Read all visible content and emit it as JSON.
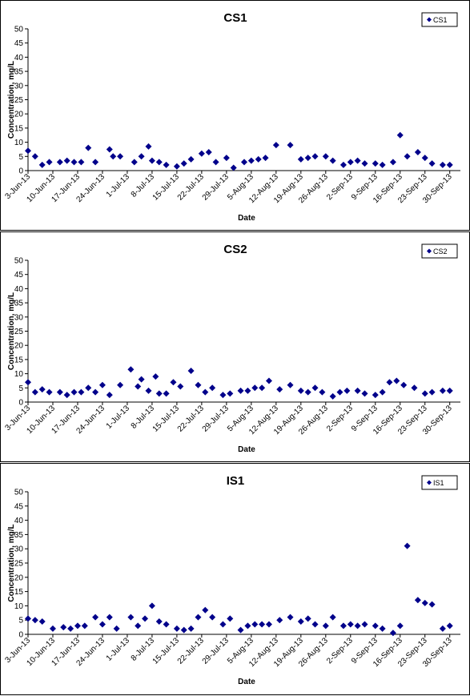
{
  "chart_data": [
    {
      "type": "scatter",
      "title": "CS1",
      "xlabel": "Date",
      "ylabel": "Concentration, mg/L",
      "ylim": [
        0,
        50
      ],
      "yticks": [
        0,
        5,
        10,
        15,
        20,
        25,
        30,
        35,
        40,
        45,
        50
      ],
      "xlim": [
        "2013-06-03",
        "2013-10-03"
      ],
      "xtick_labels": [
        "3-Jun-13",
        "10-Jun-13",
        "17-Jun-13",
        "24-Jun-13",
        "1-Jul-13",
        "8-Jul-13",
        "15-Jul-13",
        "22-Jul-13",
        "29-Jul-13",
        "5-Aug-13",
        "12-Aug-13",
        "19-Aug-13",
        "26-Aug-13",
        "2-Sep-13",
        "9-Sep-13",
        "16-Sep-13",
        "23-Sep-13",
        "30-Sep-13"
      ],
      "xtick_dates": [
        "2013-06-03",
        "2013-06-10",
        "2013-06-17",
        "2013-06-24",
        "2013-07-01",
        "2013-07-08",
        "2013-07-15",
        "2013-07-22",
        "2013-07-29",
        "2013-08-05",
        "2013-08-12",
        "2013-08-19",
        "2013-08-26",
        "2013-09-02",
        "2013-09-09",
        "2013-09-16",
        "2013-09-23",
        "2013-09-30"
      ],
      "legend": "top-right",
      "series": [
        {
          "name": "CS1",
          "color": "#00008B",
          "x": [
            "2013-06-03",
            "2013-06-05",
            "2013-06-07",
            "2013-06-09",
            "2013-06-12",
            "2013-06-14",
            "2013-06-16",
            "2013-06-18",
            "2013-06-20",
            "2013-06-22",
            "2013-06-26",
            "2013-06-27",
            "2013-06-29",
            "2013-07-03",
            "2013-07-05",
            "2013-07-07",
            "2013-07-08",
            "2013-07-10",
            "2013-07-12",
            "2013-07-15",
            "2013-07-17",
            "2013-07-19",
            "2013-07-22",
            "2013-07-24",
            "2013-07-26",
            "2013-07-29",
            "2013-07-31",
            "2013-08-03",
            "2013-08-05",
            "2013-08-07",
            "2013-08-09",
            "2013-08-12",
            "2013-08-16",
            "2013-08-19",
            "2013-08-21",
            "2013-08-23",
            "2013-08-26",
            "2013-08-28",
            "2013-08-31",
            "2013-09-02",
            "2013-09-04",
            "2013-09-06",
            "2013-09-09",
            "2013-09-11",
            "2013-09-14",
            "2013-09-16",
            "2013-09-18",
            "2013-09-21",
            "2013-09-23",
            "2013-09-25",
            "2013-09-28",
            "2013-09-30"
          ],
          "y": [
            7,
            5,
            2,
            3,
            3,
            3.5,
            3,
            3,
            8,
            3,
            7.5,
            5,
            5,
            3,
            5,
            8.5,
            3.5,
            3,
            2,
            1.5,
            2.5,
            4,
            6,
            6.5,
            3,
            4.5,
            1,
            3,
            3.5,
            4,
            4.5,
            9,
            9,
            4,
            4.5,
            5,
            5,
            3.5,
            2,
            3,
            3.5,
            2.5,
            2.5,
            2,
            3,
            12.5,
            5,
            6.5,
            4.5,
            2.5,
            2,
            2
          ]
        }
      ]
    },
    {
      "type": "scatter",
      "title": "CS2",
      "xlabel": "Date",
      "ylabel": "Concentration, mg/L",
      "ylim": [
        0,
        50
      ],
      "yticks": [
        0,
        5,
        10,
        15,
        20,
        25,
        30,
        35,
        40,
        45,
        50
      ],
      "xlim": [
        "2013-06-03",
        "2013-10-03"
      ],
      "xtick_labels": [
        "3-Jun-13",
        "10-Jun-13",
        "17-Jun-13",
        "24-Jun-13",
        "1-Jul-13",
        "8-Jul-13",
        "15-Jul-13",
        "22-Jul-13",
        "29-Jul-13",
        "5-Aug-13",
        "12-Aug-13",
        "19-Aug-13",
        "26-Aug-13",
        "2-Sep-13",
        "9-Sep-13",
        "16-Sep-13",
        "23-Sep-13",
        "30-Sep-13"
      ],
      "xtick_dates": [
        "2013-06-03",
        "2013-06-10",
        "2013-06-17",
        "2013-06-24",
        "2013-07-01",
        "2013-07-08",
        "2013-07-15",
        "2013-07-22",
        "2013-07-29",
        "2013-08-05",
        "2013-08-12",
        "2013-08-19",
        "2013-08-26",
        "2013-09-02",
        "2013-09-09",
        "2013-09-16",
        "2013-09-23",
        "2013-09-30"
      ],
      "legend": "top-right",
      "series": [
        {
          "name": "CS2",
          "color": "#00008B",
          "x": [
            "2013-06-03",
            "2013-06-05",
            "2013-06-07",
            "2013-06-09",
            "2013-06-12",
            "2013-06-14",
            "2013-06-16",
            "2013-06-18",
            "2013-06-20",
            "2013-06-22",
            "2013-06-24",
            "2013-06-26",
            "2013-06-29",
            "2013-07-02",
            "2013-07-04",
            "2013-07-05",
            "2013-07-07",
            "2013-07-09",
            "2013-07-10",
            "2013-07-12",
            "2013-07-14",
            "2013-07-16",
            "2013-07-19",
            "2013-07-21",
            "2013-07-23",
            "2013-07-25",
            "2013-07-28",
            "2013-07-30",
            "2013-08-02",
            "2013-08-04",
            "2013-08-06",
            "2013-08-08",
            "2013-08-10",
            "2013-08-13",
            "2013-08-16",
            "2013-08-19",
            "2013-08-21",
            "2013-08-23",
            "2013-08-25",
            "2013-08-28",
            "2013-08-30",
            "2013-09-01",
            "2013-09-04",
            "2013-09-06",
            "2013-09-09",
            "2013-09-11",
            "2013-09-13",
            "2013-09-15",
            "2013-09-17",
            "2013-09-20",
            "2013-09-23",
            "2013-09-25",
            "2013-09-28",
            "2013-09-30"
          ],
          "y": [
            7,
            3.5,
            4.5,
            3.5,
            3.5,
            2.5,
            3.5,
            3.5,
            5,
            3.5,
            6,
            2.5,
            6,
            11.5,
            5.5,
            8,
            4,
            9,
            3,
            3,
            7,
            5.5,
            11,
            6,
            3.5,
            5,
            2.5,
            3,
            4,
            4,
            5,
            5,
            7.5,
            4.5,
            6,
            4,
            3.5,
            5,
            3.5,
            2,
            3.5,
            4,
            4,
            3,
            2.5,
            3.5,
            7,
            7.5,
            6,
            5,
            3,
            3.5,
            4,
            4
          ]
        }
      ]
    },
    {
      "type": "scatter",
      "title": "IS1",
      "xlabel": "Date",
      "ylabel": "Concentration, mg/L",
      "ylim": [
        0,
        50
      ],
      "yticks": [
        0,
        5,
        10,
        15,
        20,
        25,
        30,
        35,
        40,
        45,
        50
      ],
      "xlim": [
        "2013-06-03",
        "2013-10-03"
      ],
      "xtick_labels": [
        "3-Jun-13",
        "10-Jun-13",
        "17-Jun-13",
        "24-Jun-13",
        "1-Jul-13",
        "8-Jul-13",
        "15-Jul-13",
        "22-Jul-13",
        "29-Jul-13",
        "5-Aug-13",
        "12-Aug-13",
        "19-Aug-13",
        "26-Aug-13",
        "2-Sep-13",
        "9-Sep-13",
        "16-Sep-13",
        "23-Sep-13",
        "30-Sep-13"
      ],
      "xtick_dates": [
        "2013-06-03",
        "2013-06-10",
        "2013-06-17",
        "2013-06-24",
        "2013-07-01",
        "2013-07-08",
        "2013-07-15",
        "2013-07-22",
        "2013-07-29",
        "2013-08-05",
        "2013-08-12",
        "2013-08-19",
        "2013-08-26",
        "2013-09-02",
        "2013-09-09",
        "2013-09-16",
        "2013-09-23",
        "2013-09-30"
      ],
      "legend": "top-right",
      "series": [
        {
          "name": "IS1",
          "color": "#00008B",
          "x": [
            "2013-06-03",
            "2013-06-05",
            "2013-06-07",
            "2013-06-10",
            "2013-06-13",
            "2013-06-15",
            "2013-06-17",
            "2013-06-19",
            "2013-06-22",
            "2013-06-24",
            "2013-06-26",
            "2013-06-28",
            "2013-07-02",
            "2013-07-04",
            "2013-07-06",
            "2013-07-08",
            "2013-07-10",
            "2013-07-12",
            "2013-07-15",
            "2013-07-17",
            "2013-07-19",
            "2013-07-21",
            "2013-07-23",
            "2013-07-25",
            "2013-07-28",
            "2013-07-30",
            "2013-08-02",
            "2013-08-04",
            "2013-08-06",
            "2013-08-08",
            "2013-08-10",
            "2013-08-13",
            "2013-08-16",
            "2013-08-19",
            "2013-08-21",
            "2013-08-23",
            "2013-08-26",
            "2013-08-28",
            "2013-08-31",
            "2013-09-02",
            "2013-09-04",
            "2013-09-06",
            "2013-09-09",
            "2013-09-11",
            "2013-09-14",
            "2013-09-16",
            "2013-09-18",
            "2013-09-21",
            "2013-09-23",
            "2013-09-25",
            "2013-09-28",
            "2013-09-30"
          ],
          "y": [
            5.5,
            5,
            4.5,
            2,
            2.5,
            2,
            3,
            3,
            6,
            3.5,
            6,
            2,
            6,
            3,
            5.5,
            10,
            4.5,
            3.5,
            2,
            1.5,
            2,
            6,
            8.5,
            6,
            3.5,
            5.5,
            1.5,
            3,
            3.5,
            3.5,
            3.5,
            5,
            6,
            4.5,
            5.5,
            3.5,
            3,
            6,
            3,
            3.5,
            3,
            3.5,
            3,
            2,
            0.5,
            3,
            31,
            12,
            11,
            10.5,
            2,
            3
          ]
        }
      ]
    }
  ]
}
